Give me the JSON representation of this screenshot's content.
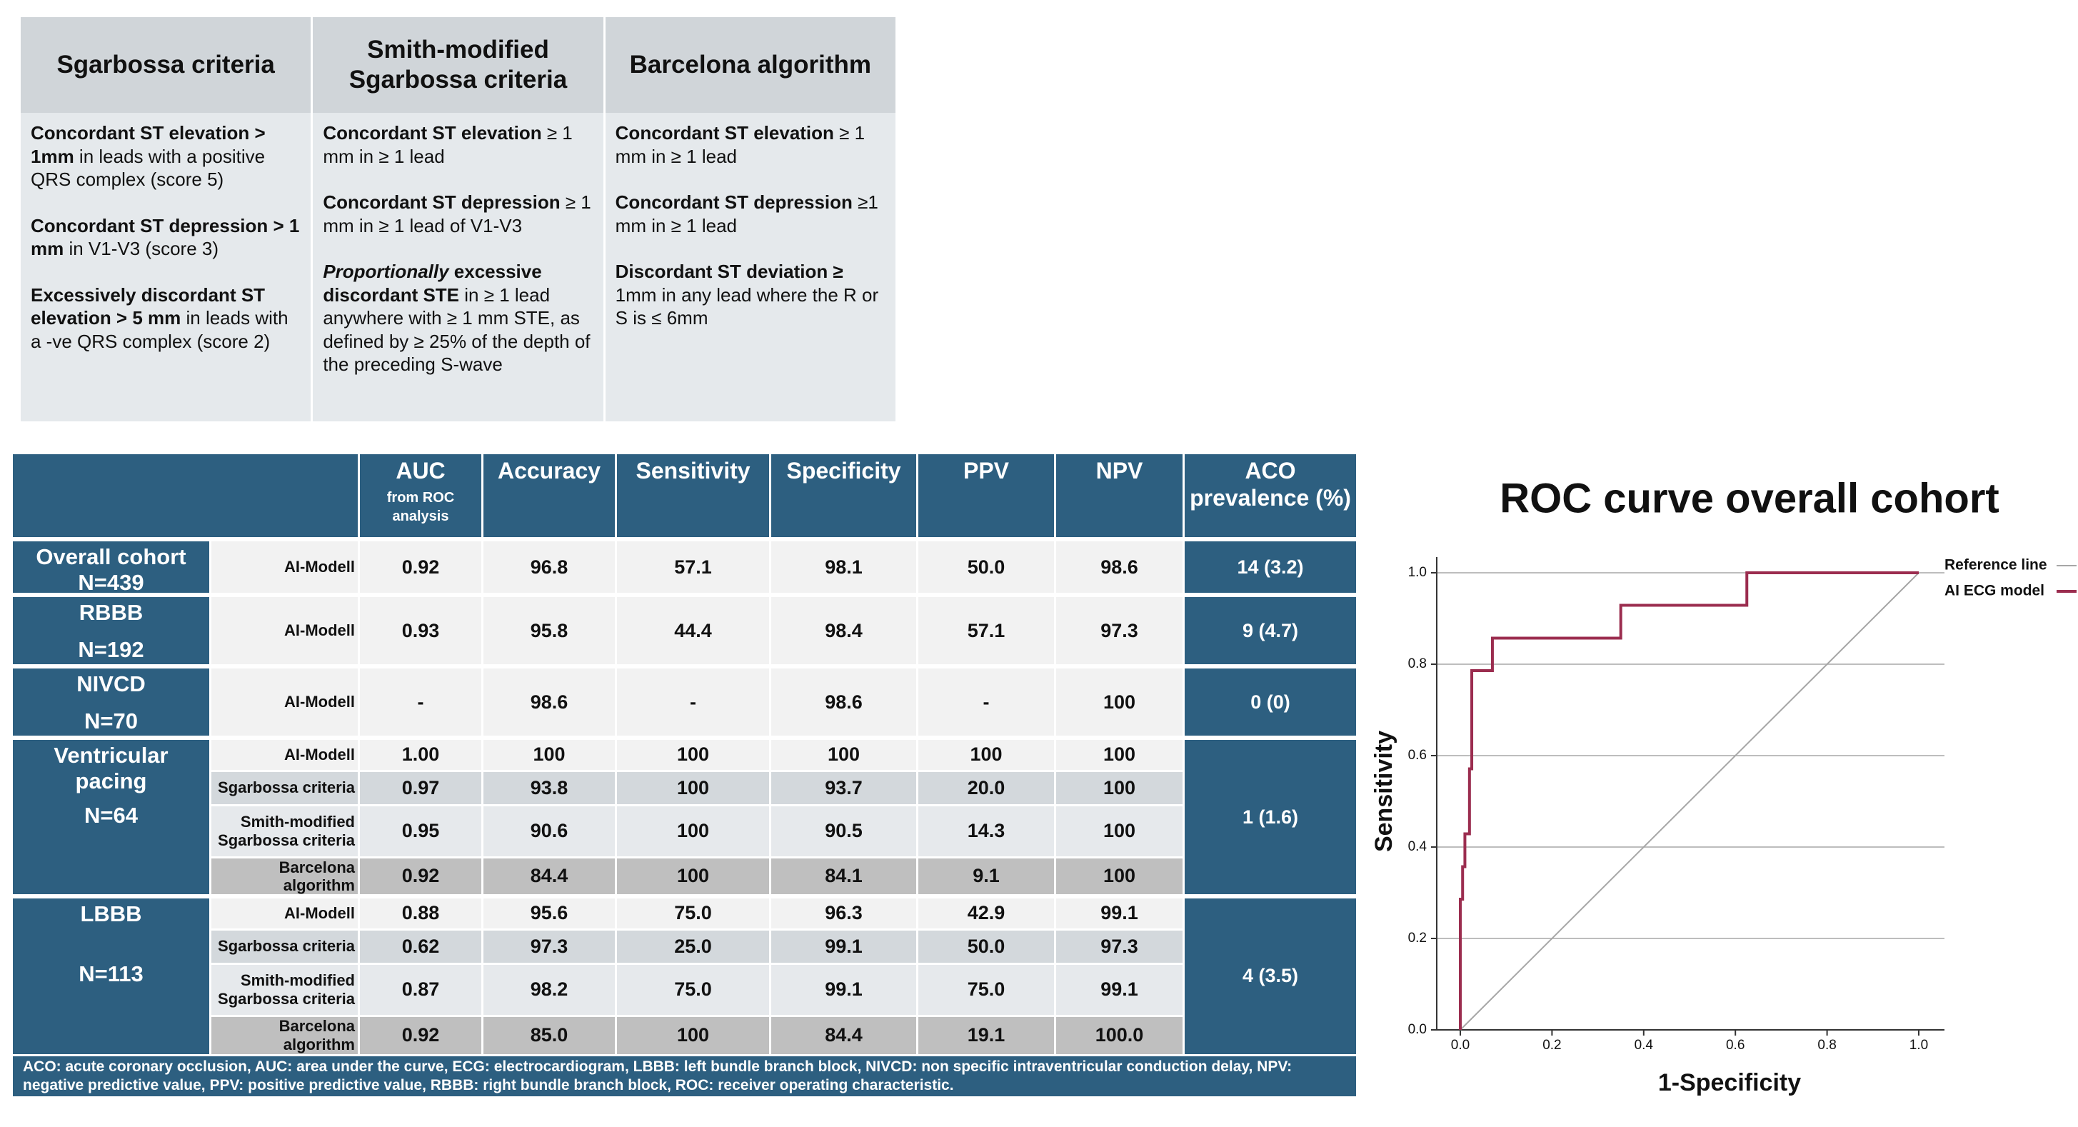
{
  "criteria_table": {
    "headers": [
      "Sgarbossa criteria",
      "Smith-modified Sgarbossa criteria",
      "Barcelona algorithm"
    ],
    "columns": [
      [
        [
          {
            "text": "Concordant ST elevation > 1mm",
            "bold": true
          },
          {
            "text": " in leads with a positive QRS complex (score 5)"
          }
        ],
        [
          {
            "text": "Concordant ST depression > 1 mm",
            "bold": true
          },
          {
            "text": " in V1-V3 (score 3)"
          }
        ],
        [
          {
            "text": "Excessively discordant ST elevation > 5 mm",
            "bold": true
          },
          {
            "text": " in leads with a -ve QRS complex (score 2)"
          }
        ]
      ],
      [
        [
          {
            "text": "Concordant ST elevation",
            "bold": true
          },
          {
            "text": " ≥ 1 mm in ≥ 1 lead"
          }
        ],
        [
          {
            "text": "Concordant ST depression",
            "bold": true
          },
          {
            "text": " ≥ 1 mm in ≥ 1 lead of V1-V3"
          }
        ],
        [
          {
            "text": "Proportionally",
            "bold": true,
            "italic": true
          },
          {
            "text": " excessive discordant STE",
            "bold": true
          },
          {
            "text": " in ≥ 1 lead anywhere with ≥ 1 mm STE, as defined by ≥ 25% of the depth of the preceding S-wave"
          }
        ]
      ],
      [
        [
          {
            "text": "Concordant ST elevation",
            "bold": true
          },
          {
            "text": " ≥ 1 mm in ≥ 1 lead"
          }
        ],
        [
          {
            "text": "Concordant ST depression",
            "bold": true
          },
          {
            "text": " ≥1 mm in ≥ 1 lead"
          }
        ],
        [
          {
            "text": "Discordant ST deviation ≥",
            "bold": true
          },
          {
            "text": " 1mm in any lead where the R or S is ≤ 6mm"
          }
        ]
      ]
    ]
  },
  "results_table": {
    "headers": [
      {
        "title": "AUC",
        "subtitle": "from ROC analysis"
      },
      {
        "title": "Accuracy"
      },
      {
        "title": "Sensitivity"
      },
      {
        "title": "Specificity"
      },
      {
        "title": "PPV"
      },
      {
        "title": "NPV"
      },
      {
        "title": "ACO prevalence (%)"
      }
    ],
    "groups": [
      {
        "name": "Overall cohort",
        "n": "N=439",
        "prevalence": "14 (3.2)",
        "rows": [
          {
            "method": "AI-Modell",
            "values": [
              "0.92",
              "96.8",
              "57.1",
              "98.1",
              "50.0",
              "98.6"
            ]
          }
        ]
      },
      {
        "name": "RBBB",
        "n": "N=192",
        "prevalence": "9 (4.7)",
        "rows": [
          {
            "method": "AI-Modell",
            "values": [
              "0.93",
              "95.8",
              "44.4",
              "98.4",
              "57.1",
              "97.3"
            ]
          }
        ]
      },
      {
        "name": "NIVCD",
        "n": "N=70",
        "prevalence": "0 (0)",
        "rows": [
          {
            "method": "AI-Modell",
            "values": [
              "-",
              "98.6",
              "-",
              "98.6",
              "-",
              "100"
            ]
          }
        ]
      },
      {
        "name": "Ventricular pacing",
        "n": "N=64",
        "prevalence": "1 (1.6)",
        "rows": [
          {
            "method": "AI-Modell",
            "values": [
              "1.00",
              "100",
              "100",
              "100",
              "100",
              "100"
            ]
          },
          {
            "method": "Sgarbossa criteria",
            "values": [
              "0.97",
              "93.8",
              "100",
              "93.7",
              "20.0",
              "100"
            ]
          },
          {
            "method": "Smith-modified Sgarbossa criteria",
            "values": [
              "0.95",
              "90.6",
              "100",
              "90.5",
              "14.3",
              "100"
            ]
          },
          {
            "method": "Barcelona algorithm",
            "values": [
              "0.92",
              "84.4",
              "100",
              "84.1",
              "9.1",
              "100"
            ]
          }
        ]
      },
      {
        "name": "LBBB",
        "n": "N=113",
        "prevalence": "4 (3.5)",
        "rows": [
          {
            "method": "AI-Modell",
            "values": [
              "0.88",
              "95.6",
              "75.0",
              "96.3",
              "42.9",
              "99.1"
            ]
          },
          {
            "method": "Sgarbossa criteria",
            "values": [
              "0.62",
              "97.3",
              "25.0",
              "99.1",
              "50.0",
              "97.3"
            ]
          },
          {
            "method": "Smith-modified Sgarbossa criteria",
            "values": [
              "0.87",
              "98.2",
              "75.0",
              "99.1",
              "75.0",
              "99.1"
            ]
          },
          {
            "method": "Barcelona algorithm",
            "values": [
              "0.92",
              "85.0",
              "100",
              "84.4",
              "19.1",
              "100.0"
            ]
          }
        ]
      }
    ],
    "footnote": "ACO: acute coronary occlusion, AUC: area under the curve, ECG: electrocardiogram, LBBB: left bundle branch block, NIVCD: non specific intraventricular conduction delay, NPV: negative predictive value, PPV: positive predictive value, RBBB: right bundle branch  block, ROC: receiver operating characteristic."
  },
  "chart_data": {
    "type": "line",
    "title": "ROC curve  overall cohort",
    "x_label": "1-Specificity",
    "y_label": "Sensitivity",
    "xlim": [
      0,
      1
    ],
    "ylim": [
      0,
      1
    ],
    "xticks": [
      {
        "value": 0,
        "label": "0.0"
      },
      {
        "value": 0.2,
        "label": "0.2"
      },
      {
        "value": 0.4,
        "label": "0.4"
      },
      {
        "value": 0.6,
        "label": "0.6"
      },
      {
        "value": 0.8,
        "label": "0.8"
      },
      {
        "value": 1,
        "label": "1.0"
      }
    ],
    "yticks": [
      {
        "value": 0,
        "label": "0.0"
      },
      {
        "value": 0.2,
        "label": "0.2"
      },
      {
        "value": 0.4,
        "label": "0.4"
      },
      {
        "value": 0.6,
        "label": "0.6"
      },
      {
        "value": 0.8,
        "label": "0.8"
      },
      {
        "value": 1,
        "label": "1.0"
      }
    ],
    "grid": true,
    "legend": "top-right",
    "series": [
      {
        "name": "Reference line",
        "color": "#a6a6a6",
        "x": [
          0,
          1
        ],
        "values": [
          0,
          1
        ]
      },
      {
        "name": "AI ECG model",
        "color": "#9b2d4f",
        "x": [
          0,
          0,
          0.005,
          0.005,
          0.01,
          0.01,
          0.02,
          0.02,
          0.025,
          0.025,
          0.07,
          0.07,
          0.35,
          0.35,
          0.625,
          0.625,
          1
        ],
        "values": [
          0,
          0.286,
          0.286,
          0.357,
          0.357,
          0.429,
          0.429,
          0.571,
          0.571,
          0.786,
          0.786,
          0.857,
          0.857,
          0.929,
          0.929,
          1,
          1
        ]
      }
    ]
  }
}
